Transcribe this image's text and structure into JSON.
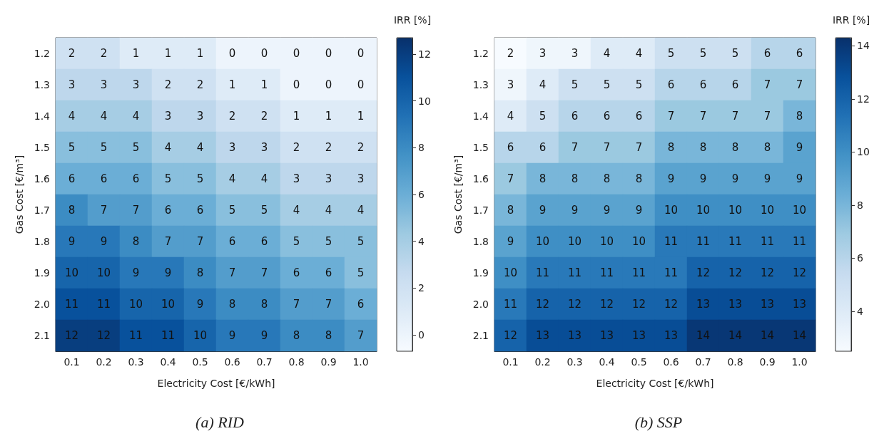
{
  "chart_data": [
    {
      "type": "heatmap",
      "title": "(a) RID",
      "xlabel": "Electricity Cost [€/kWh]",
      "ylabel": "Gas Cost [€/m³]",
      "clabel": "IRR [%]",
      "data_labels": true,
      "categories": [
        "0.1",
        "0.2",
        "0.3",
        "0.4",
        "0.5",
        "0.6",
        "0.7",
        "0.8",
        "0.9",
        "1.0"
      ],
      "y_categories": [
        "1.2",
        "1.3",
        "1.4",
        "1.5",
        "1.6",
        "1.7",
        "1.8",
        "1.9",
        "2.0",
        "2.1"
      ],
      "cells": [
        [
          2,
          2,
          1,
          1,
          1,
          0,
          0,
          0,
          0,
          0
        ],
        [
          3,
          3,
          3,
          2,
          2,
          1,
          1,
          0,
          0,
          0
        ],
        [
          4,
          4,
          4,
          3,
          3,
          2,
          2,
          1,
          1,
          1
        ],
        [
          5,
          5,
          5,
          4,
          4,
          3,
          3,
          2,
          2,
          2
        ],
        [
          6,
          6,
          6,
          5,
          5,
          4,
          4,
          3,
          3,
          3
        ],
        [
          8,
          7,
          7,
          6,
          6,
          5,
          5,
          4,
          4,
          4
        ],
        [
          9,
          9,
          8,
          7,
          7,
          6,
          6,
          5,
          5,
          5
        ],
        [
          10,
          10,
          9,
          9,
          8,
          7,
          7,
          6,
          6,
          5
        ],
        [
          11,
          11,
          10,
          10,
          9,
          8,
          8,
          7,
          7,
          6
        ],
        [
          12,
          12,
          11,
          11,
          10,
          9,
          9,
          8,
          8,
          7
        ]
      ],
      "clim": [
        -0.7,
        12.7
      ],
      "cticks": [
        0,
        2,
        4,
        6,
        8,
        10,
        12
      ]
    },
    {
      "type": "heatmap",
      "title": "(b) SSP",
      "xlabel": "Electricity Cost [€/kWh]",
      "ylabel": "Gas Cost [€/m³]",
      "clabel": "IRR [%]",
      "data_labels": true,
      "categories": [
        "0.1",
        "0.2",
        "0.3",
        "0.4",
        "0.5",
        "0.6",
        "0.7",
        "0.8",
        "0.9",
        "1.0"
      ],
      "y_categories": [
        "1.2",
        "1.3",
        "1.4",
        "1.5",
        "1.6",
        "1.7",
        "1.8",
        "1.9",
        "2.0",
        "2.1"
      ],
      "cells": [
        [
          2,
          3,
          3,
          4,
          4,
          5,
          5,
          5,
          6,
          6
        ],
        [
          3,
          4,
          5,
          5,
          5,
          6,
          6,
          6,
          7,
          7
        ],
        [
          4,
          5,
          6,
          6,
          6,
          7,
          7,
          7,
          7,
          8
        ],
        [
          6,
          6,
          7,
          7,
          7,
          8,
          8,
          8,
          8,
          9
        ],
        [
          7,
          8,
          8,
          8,
          8,
          9,
          9,
          9,
          9,
          9
        ],
        [
          8,
          9,
          9,
          9,
          9,
          10,
          10,
          10,
          10,
          10
        ],
        [
          9,
          10,
          10,
          10,
          10,
          11,
          11,
          11,
          11,
          11
        ],
        [
          10,
          11,
          11,
          11,
          11,
          11,
          12,
          12,
          12,
          12
        ],
        [
          11,
          12,
          12,
          12,
          12,
          12,
          13,
          13,
          13,
          13
        ],
        [
          12,
          13,
          13,
          13,
          13,
          13,
          14,
          14,
          14,
          14
        ]
      ],
      "clim": [
        2.5,
        14.3
      ],
      "cticks": [
        4,
        6,
        8,
        10,
        12,
        14
      ]
    }
  ]
}
